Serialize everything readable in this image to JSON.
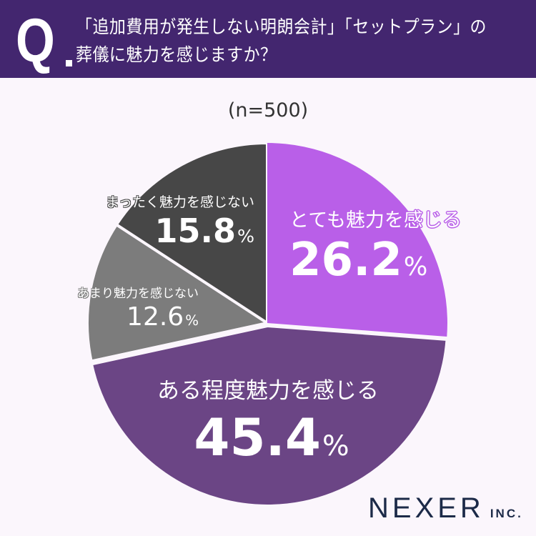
{
  "header": {
    "q_mark": "Q",
    "question_line1": "「追加費用が発生しない明朗会計」「セットプラン」の",
    "question_line2": "葬儀に魅力を感じますか？"
  },
  "sample_size": "(n=500)",
  "colors": {
    "header_bg": "#43266f",
    "page_bg": "#fbf6fc",
    "very_attractive": "#b95fe8",
    "somewhat_attractive": "#6b4585",
    "not_very_attractive": "#7c7c7c",
    "not_at_all_attractive": "#474747"
  },
  "chart_data": {
    "type": "pie",
    "title": "「追加費用が発生しない明朗会計」「セットプラン」の葬儀に魅力を感じますか？",
    "subtitle": "(n=500)",
    "categories": [
      "とても魅力を感じる",
      "ある程度魅力を感じる",
      "あまり魅力を感じない",
      "まったく魅力を感じない"
    ],
    "values": [
      26.2,
      45.4,
      12.6,
      15.8
    ],
    "unit": "%",
    "start_angle": "12 o'clock",
    "direction": "clockwise",
    "legend": "none (inline labels)"
  },
  "labels": {
    "very": {
      "name": "とても魅力を感じる",
      "value": "26.2",
      "unit": "%"
    },
    "some": {
      "name": "ある程度魅力を感じる",
      "value": "45.4",
      "unit": "%"
    },
    "notmuch": {
      "name": "あまり魅力を感じない",
      "value": "12.6",
      "unit": "%"
    },
    "notall": {
      "name": "まったく魅力を感じない",
      "value": "15.8",
      "unit": "%"
    }
  },
  "footer": {
    "logo_main": "NEXER",
    "logo_sub": "INC."
  }
}
